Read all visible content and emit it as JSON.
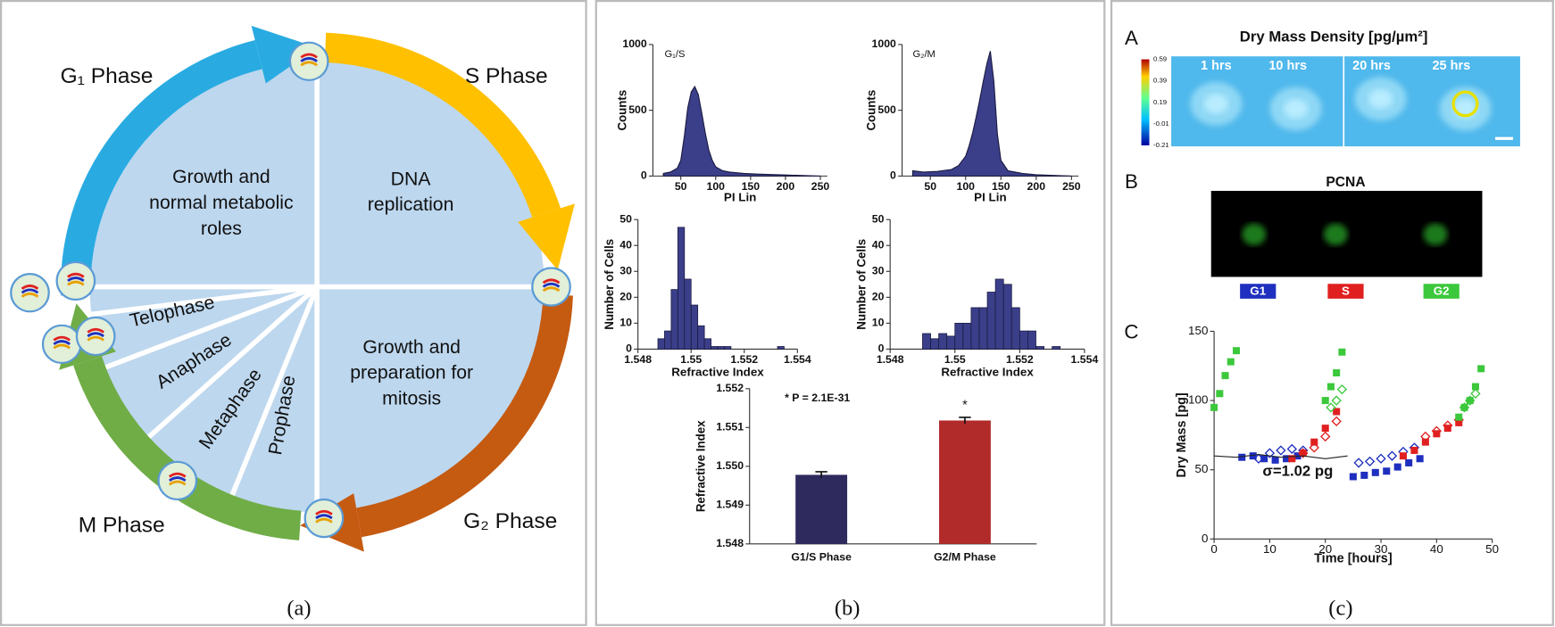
{
  "panels": {
    "a": {
      "caption": "(a)",
      "phases": [
        "G₁ Phase",
        "S Phase",
        "G₂ Phase",
        "M Phase"
      ],
      "regions": [
        [
          "Growth and",
          "normal metabolic",
          "roles"
        ],
        [
          "DNA",
          "replication"
        ],
        [
          "Growth and",
          "preparation for",
          "mitosis"
        ]
      ],
      "stages": [
        "Telophase",
        "Anaphase",
        "Metaphase",
        "Prophase"
      ]
    },
    "b": {
      "caption": "(b)",
      "flow_histograms": [
        {
          "type": "area",
          "label": "G₁/S",
          "xlabel": "PI Lin",
          "ylabel": "Counts",
          "color": "#3b3f8a",
          "xlim": [
            10,
            260
          ],
          "xticks": [
            50,
            100,
            150,
            200,
            250
          ],
          "ylim": [
            0,
            1000
          ],
          "yticks": [
            0,
            500,
            1000
          ],
          "x": [
            25,
            35,
            45,
            50,
            55,
            60,
            65,
            70,
            75,
            80,
            85,
            90,
            95,
            100,
            110,
            120,
            140,
            160,
            200,
            250
          ],
          "values": [
            20,
            30,
            60,
            120,
            300,
            520,
            640,
            680,
            620,
            480,
            330,
            200,
            120,
            70,
            40,
            30,
            20,
            15,
            8,
            0
          ]
        },
        {
          "type": "area",
          "label": "G₂/M",
          "xlabel": "PI Lin",
          "ylabel": "Counts",
          "color": "#3b3f8a",
          "xlim": [
            10,
            260
          ],
          "xticks": [
            50,
            100,
            150,
            200,
            250
          ],
          "ylim": [
            0,
            1000
          ],
          "yticks": [
            0,
            500,
            1000
          ],
          "x": [
            25,
            40,
            60,
            80,
            90,
            100,
            105,
            110,
            115,
            120,
            125,
            130,
            135,
            140,
            145,
            150,
            160,
            180,
            200,
            250
          ],
          "values": [
            40,
            30,
            35,
            50,
            80,
            150,
            230,
            330,
            450,
            580,
            720,
            850,
            950,
            720,
            320,
            120,
            40,
            20,
            10,
            0
          ]
        }
      ],
      "ri_histograms": [
        {
          "type": "histogram",
          "xlabel": "Refractive Index",
          "ylabel": "Number of Cells",
          "color": "#3b3f8a",
          "xlim": [
            1.548,
            1.554
          ],
          "xticks": [
            1.548,
            1.55,
            1.552,
            1.554
          ],
          "ylim": [
            0,
            50
          ],
          "yticks": [
            0,
            10,
            20,
            30,
            40,
            50
          ],
          "bins": [
            1.54875,
            1.549,
            1.54925,
            1.5495,
            1.54975,
            1.55,
            1.55025,
            1.5505,
            1.55075,
            1.551,
            1.55125,
            1.5515,
            1.55175,
            1.552,
            1.55225,
            1.5525,
            1.55275,
            1.553,
            1.55325,
            1.5535
          ],
          "values": [
            4,
            7,
            23,
            47,
            27,
            17,
            9,
            4,
            1,
            1,
            1,
            0,
            0,
            0,
            0,
            0,
            0,
            0,
            1
          ]
        },
        {
          "type": "histogram",
          "xlabel": "Refractive Index",
          "ylabel": "Number of Cells",
          "color": "#3b3f8a",
          "xlim": [
            1.548,
            1.554
          ],
          "xticks": [
            1.548,
            1.55,
            1.552,
            1.554
          ],
          "ylim": [
            0,
            50
          ],
          "yticks": [
            0,
            10,
            20,
            30,
            40,
            50
          ],
          "bins": [
            1.549,
            1.54925,
            1.5495,
            1.54975,
            1.55,
            1.55025,
            1.5505,
            1.55075,
            1.551,
            1.55125,
            1.5515,
            1.55175,
            1.552,
            1.55225,
            1.5525,
            1.55275,
            1.553,
            1.55325
          ],
          "values": [
            6,
            4,
            6,
            5,
            10,
            10,
            16,
            16,
            22,
            27,
            25,
            16,
            7,
            7,
            1,
            0,
            1
          ]
        }
      ],
      "bar_chart": {
        "type": "bar",
        "ylabel": "Refractive Index",
        "annotation": "* P = 2.1E-31",
        "star": "*",
        "categories": [
          "G1/S Phase",
          "G2/M Phase"
        ],
        "values": [
          1.54978,
          1.55118
        ],
        "errors": [
          8e-05,
          8e-05
        ],
        "colors": [
          "#2e2a5e",
          "#b22b2b"
        ],
        "ylim": [
          1.548,
          1.552
        ],
        "yticks": [
          1.548,
          1.549,
          {
            "value": 1.55,
            "label": "1.550"
          },
          1.551,
          1.552
        ]
      }
    },
    "c": {
      "caption": "(c)",
      "A": {
        "letter": "A",
        "title": "Dry Mass Density [pg/µm²]",
        "times": [
          "1 hrs",
          "10 hrs",
          "20 hrs",
          "25 hrs"
        ],
        "clim": [
          -0.21,
          0.59
        ],
        "colorbar_ticks": [
          0.59,
          0.39,
          0.19,
          -0.01,
          -0.21
        ]
      },
      "B": {
        "letter": "B",
        "title": "PCNA",
        "labels": [
          {
            "text": "G1",
            "color": "#1f2fbf"
          },
          {
            "text": "S",
            "color": "#e02020"
          },
          {
            "text": "G2",
            "color": "#3cc83c"
          }
        ]
      },
      "C": {
        "type": "scatter",
        "letter": "C",
        "xlabel": "Time [hours]",
        "ylabel": "Dry Mass [pg]",
        "annotation": "σ=1.02 pg",
        "xlim": [
          0,
          50
        ],
        "xticks": [
          0,
          10,
          20,
          30,
          40,
          50
        ],
        "ylim": [
          0,
          150
        ],
        "yticks": [
          0,
          50,
          100,
          150
        ],
        "series": [
          {
            "style": "filled",
            "color": "#1f2fbf",
            "x": [
              5,
              7,
              9,
              11,
              13,
              15,
              25,
              27,
              29,
              31,
              33,
              35,
              37
            ],
            "values": [
              59,
              60,
              58,
              57,
              58,
              60,
              45,
              46,
              48,
              49,
              52,
              55,
              58
            ]
          },
          {
            "style": "open",
            "color": "#1f2fbf",
            "x": [
              8,
              10,
              12,
              14,
              16,
              26,
              28,
              30,
              32,
              34,
              36
            ],
            "values": [
              58,
              62,
              64,
              65,
              64,
              55,
              56,
              58,
              60,
              63,
              66
            ]
          },
          {
            "style": "filled",
            "color": "#e02020",
            "x": [
              14,
              16,
              18,
              20,
              22,
              34,
              36,
              38,
              40,
              42,
              44
            ],
            "values": [
              58,
              62,
              70,
              80,
              92,
              60,
              64,
              70,
              76,
              80,
              84
            ]
          },
          {
            "style": "open",
            "color": "#e02020",
            "x": [
              16,
              18,
              20,
              22,
              38,
              40,
              42,
              44
            ],
            "values": [
              62,
              66,
              74,
              85,
              74,
              78,
              82,
              86
            ]
          },
          {
            "style": "filled",
            "color": "#3cc83c",
            "x": [
              0,
              1,
              2,
              3,
              4,
              20,
              21,
              22,
              23,
              44,
              45,
              46,
              47,
              48
            ],
            "values": [
              95,
              105,
              118,
              128,
              136,
              100,
              110,
              120,
              135,
              88,
              95,
              100,
              110,
              123
            ]
          },
          {
            "style": "open",
            "color": "#3cc83c",
            "x": [
              21,
              22,
              23,
              45,
              46,
              47
            ],
            "values": [
              95,
              100,
              108,
              95,
              100,
              105
            ]
          },
          {
            "style": "line",
            "color": "#222222",
            "x": [
              0,
              4,
              8,
              12,
              16,
              20,
              24
            ],
            "values": [
              60,
              59,
              61,
              59,
              60,
              58,
              60
            ]
          }
        ]
      }
    }
  }
}
